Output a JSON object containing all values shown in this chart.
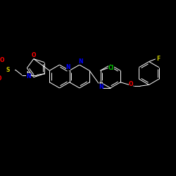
{
  "background_color": "#000000",
  "bond_color": "#ffffff",
  "figsize": [
    2.5,
    2.5
  ],
  "dpi": 100,
  "xlim": [
    0,
    250
  ],
  "ylim": [
    0,
    250
  ],
  "atom_colors": {
    "N": "#0000ff",
    "O": "#ff0000",
    "S": "#c8c800",
    "Cl": "#00c800",
    "F": "#c8c800",
    "NH": "#0000ff"
  },
  "bond_lw": 0.7,
  "font_size": 5.5
}
